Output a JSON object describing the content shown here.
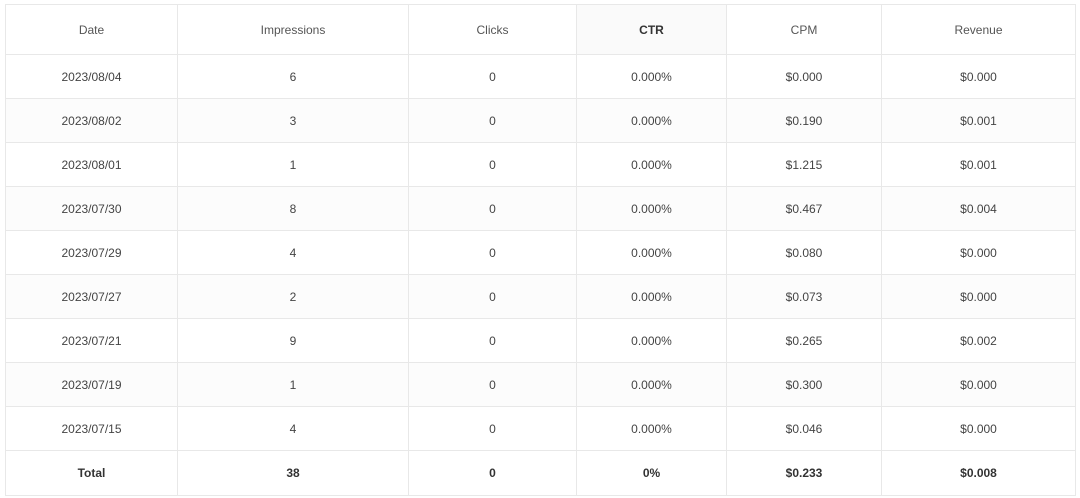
{
  "table": {
    "headers": [
      "Date",
      "Impressions",
      "Clicks",
      "CTR",
      "CPM",
      "Revenue"
    ],
    "rows": [
      [
        "2023/08/04",
        "6",
        "0",
        "0.000%",
        "$0.000",
        "$0.000"
      ],
      [
        "2023/08/02",
        "3",
        "0",
        "0.000%",
        "$0.190",
        "$0.001"
      ],
      [
        "2023/08/01",
        "1",
        "0",
        "0.000%",
        "$1.215",
        "$0.001"
      ],
      [
        "2023/07/30",
        "8",
        "0",
        "0.000%",
        "$0.467",
        "$0.004"
      ],
      [
        "2023/07/29",
        "4",
        "0",
        "0.000%",
        "$0.080",
        "$0.000"
      ],
      [
        "2023/07/27",
        "2",
        "0",
        "0.000%",
        "$0.073",
        "$0.000"
      ],
      [
        "2023/07/21",
        "9",
        "0",
        "0.000%",
        "$0.265",
        "$0.002"
      ],
      [
        "2023/07/19",
        "1",
        "0",
        "0.000%",
        "$0.300",
        "$0.000"
      ],
      [
        "2023/07/15",
        "4",
        "0",
        "0.000%",
        "$0.046",
        "$0.000"
      ]
    ],
    "total": [
      "Total",
      "38",
      "0",
      "0%",
      "$0.233",
      "$0.008"
    ]
  }
}
